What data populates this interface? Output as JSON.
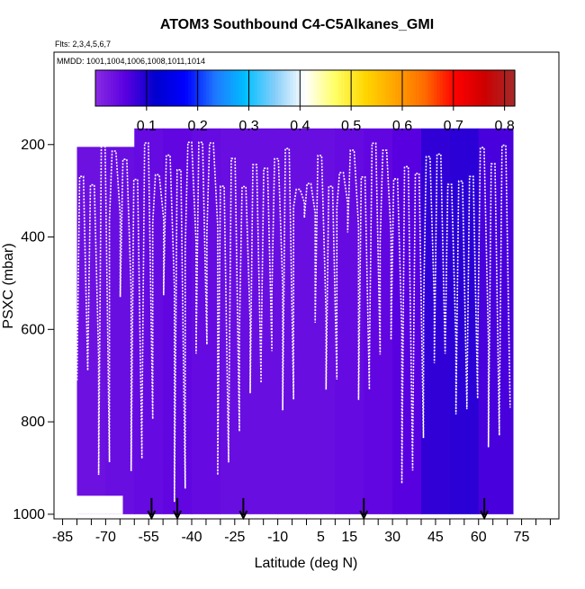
{
  "chart_data": {
    "type": "heatmap",
    "title": "ATOM3 Southbound C4-C5Alkanes_GMI",
    "subtitle_flights": "Flts: 2,3,4,5,6,7",
    "subtitle_dates": "MMDD: 1001,1004,1006,1008,1011,1014",
    "xlabel": "Latitude (deg N)",
    "ylabel": "PSXC (mbar)",
    "x_ticks": [
      "-85",
      "-70",
      "-55",
      "-40",
      "-25",
      "-10",
      "5",
      "15",
      "30",
      "45",
      "60",
      "75"
    ],
    "x_tick_values": [
      -85,
      -70,
      -55,
      -40,
      -25,
      -10,
      5,
      15,
      30,
      45,
      60,
      75
    ],
    "y_ticks": [
      "200",
      "400",
      "600",
      "800",
      "1000"
    ],
    "y_tick_values": [
      200,
      400,
      600,
      800,
      1000
    ],
    "xlim": [
      -88,
      88
    ],
    "ylim": [
      1010,
      0
    ],
    "colorbar": {
      "ticks": [
        "0.1",
        "0.2",
        "0.3",
        "0.4",
        "0.5",
        "0.6",
        "0.7",
        "0.8"
      ],
      "tick_values": [
        0.1,
        0.2,
        0.3,
        0.4,
        0.5,
        0.6,
        0.7,
        0.8
      ],
      "range": [
        0.0,
        0.82
      ],
      "colors": [
        "#8a2be2",
        "#5a00e0",
        "#0000cd",
        "#0000ff",
        "#1e78ff",
        "#00bfff",
        "#87cefa",
        "#ffffff",
        "#ffff66",
        "#ffd700",
        "#ffa500",
        "#ff6a00",
        "#ff0000",
        "#cd0000",
        "#a52a2a"
      ]
    },
    "field_extent": {
      "lat_min": -80,
      "lat_max": 72,
      "p_top": 165,
      "p_bottom": 1000
    },
    "field_values": [
      {
        "lat": -75,
        "value": 0.035
      },
      {
        "lat": -65,
        "value": 0.04
      },
      {
        "lat": -55,
        "value": 0.045
      },
      {
        "lat": -45,
        "value": 0.05
      },
      {
        "lat": -35,
        "value": 0.045
      },
      {
        "lat": -25,
        "value": 0.04
      },
      {
        "lat": -15,
        "value": 0.04
      },
      {
        "lat": -5,
        "value": 0.04
      },
      {
        "lat": 5,
        "value": 0.04
      },
      {
        "lat": 15,
        "value": 0.045
      },
      {
        "lat": 25,
        "value": 0.05
      },
      {
        "lat": 35,
        "value": 0.06
      },
      {
        "lat": 45,
        "value": 0.085
      },
      {
        "lat": 55,
        "value": 0.09
      },
      {
        "lat": 65,
        "value": 0.07
      }
    ],
    "flight_tracks": {
      "lat_start": -80,
      "lat_end": 71,
      "count": 40,
      "upper_pressure_range": [
        185,
        300
      ],
      "lower_pressure_range": [
        330,
        990
      ]
    },
    "arrows_at_lat": [
      -54,
      -45,
      -22,
      20,
      62
    ]
  }
}
